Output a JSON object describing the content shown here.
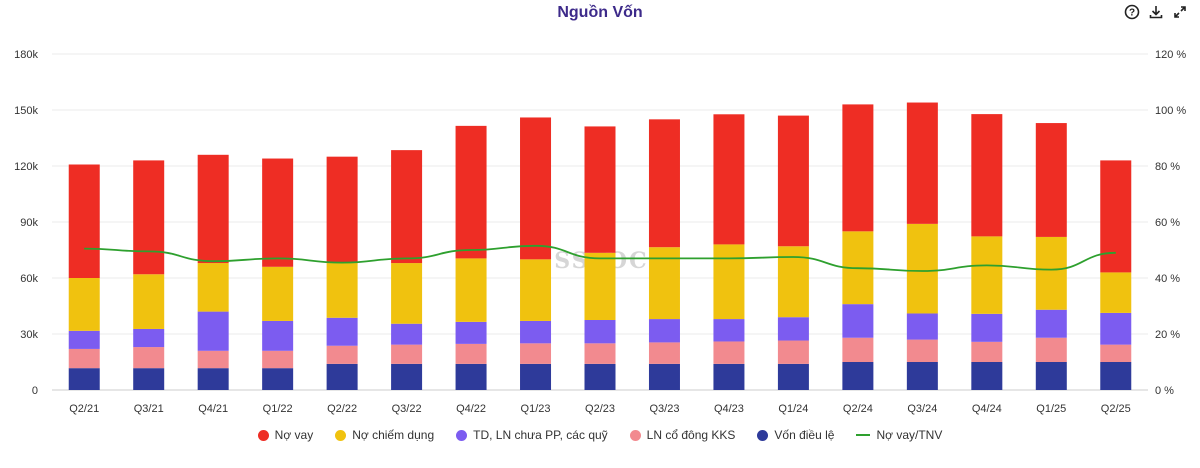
{
  "header": {
    "title": "Nguồn Vốn"
  },
  "toolbar": [
    {
      "name": "help-icon",
      "glyph": "?"
    },
    {
      "name": "download-icon",
      "glyph": "⭳"
    },
    {
      "name": "expand-icon",
      "glyph": "⤢"
    }
  ],
  "watermark": "SSTOCK",
  "chart_data": {
    "type": "bar",
    "stacked": true,
    "title": "Nguồn Vốn",
    "categories": [
      "Q2/21",
      "Q3/21",
      "Q4/21",
      "Q1/22",
      "Q2/22",
      "Q3/22",
      "Q4/22",
      "Q1/23",
      "Q2/23",
      "Q3/23",
      "Q4/23",
      "Q1/24",
      "Q2/24",
      "Q3/24",
      "Q4/24",
      "Q1/25",
      "Q2/25"
    ],
    "y_left": {
      "min": 0,
      "max": 180000,
      "ticks": [
        0,
        30000,
        60000,
        90000,
        120000,
        150000,
        180000
      ],
      "tick_labels": [
        "0",
        "30k",
        "60k",
        "90k",
        "120k",
        "150k",
        "180k"
      ]
    },
    "y_right": {
      "min": 0,
      "max": 120,
      "ticks": [
        0,
        20,
        40,
        60,
        80,
        100,
        120
      ],
      "tick_labels": [
        "0 %",
        "20 %",
        "40 %",
        "60 %",
        "80 %",
        "100 %",
        "120 %"
      ]
    },
    "series": [
      {
        "name": "Vốn điều lệ",
        "color": "#2e3a9a",
        "values": [
          11700,
          11700,
          11700,
          11700,
          14000,
          14000,
          14000,
          14000,
          14000,
          14000,
          14000,
          14000,
          15000,
          15000,
          15000,
          15000,
          15000
        ]
      },
      {
        "name": "LN cổ đông KKS",
        "color": "#f28a8f",
        "values": [
          10300,
          11300,
          9300,
          9300,
          9700,
          10300,
          10700,
          11000,
          11000,
          11500,
          12000,
          12500,
          13000,
          12000,
          10800,
          13000,
          9300
        ]
      },
      {
        "name": "TD, LN chưa PP, các quỹ",
        "color": "#7c5cf0",
        "values": [
          9700,
          9700,
          21000,
          16000,
          15000,
          11200,
          11800,
          12000,
          12500,
          12500,
          12000,
          12500,
          18000,
          14000,
          15000,
          15000,
          17000
        ]
      },
      {
        "name": "Nợ chiếm dụng",
        "color": "#f0c20f",
        "values": [
          28300,
          29300,
          26000,
          29000,
          29300,
          32500,
          34000,
          33000,
          36000,
          38500,
          40000,
          38000,
          39000,
          48000,
          41500,
          39000,
          21700
        ]
      },
      {
        "name": "Nợ vay",
        "color": "#ee2d24",
        "values": [
          60800,
          61000,
          58000,
          58000,
          57000,
          60500,
          71000,
          76000,
          67700,
          68500,
          69700,
          70000,
          68000,
          65000,
          65500,
          61000,
          60000
        ]
      }
    ],
    "line": {
      "name": "Nợ vay/TNV",
      "color": "#2ea02e",
      "axis": "right",
      "values": [
        50.5,
        49.5,
        46,
        47,
        45.5,
        47,
        50,
        51.5,
        47,
        47,
        47,
        47.5,
        43.5,
        42.5,
        44.5,
        43,
        49
      ]
    },
    "legend": [
      "Nợ vay",
      "Nợ chiếm dụng",
      "TD, LN chưa PP, các quỹ",
      "LN cổ đông KKS",
      "Vốn điều lệ",
      "Nợ vay/TNV"
    ],
    "legend_position": "bottom",
    "grid": true
  }
}
